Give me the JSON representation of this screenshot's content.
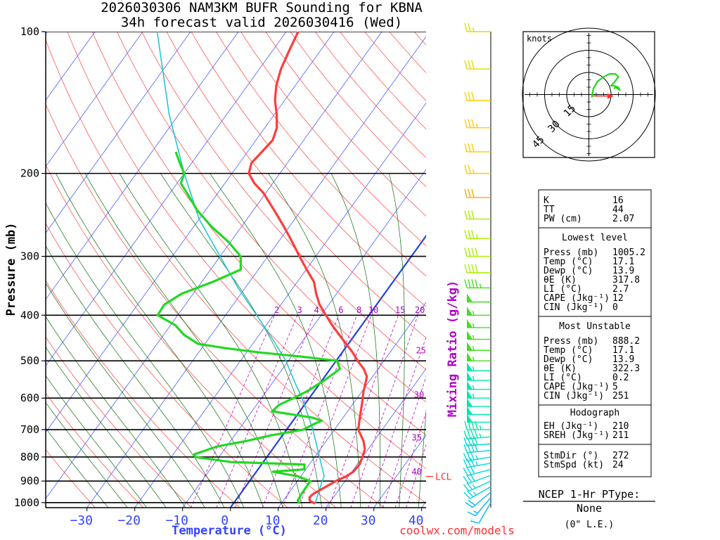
{
  "title": {
    "line1": "2026030306 NAM3KM BUFR Sounding for KBNA",
    "line2": "34h forecast valid 2026030416 (Wed)"
  },
  "colors": {
    "temperature": "#ff3c3c",
    "dewpoint": "#22d822",
    "parcel": "#22c8d8",
    "zero_isotherm": "#2244dd",
    "isotherm": "#4a5cff",
    "dry_adiabat": "#ff4040",
    "moist_adiabat": "#0a6a0a",
    "mixing_ratio": "#c000c0",
    "axis_label": "#3344ff",
    "mixing_label": "#b000c8",
    "site": "#ff3030"
  },
  "chart_data": {
    "type": "skew-t",
    "xlabel": "Temperature (°C)",
    "ylabel": "Pressure (mb)",
    "mixing_label": "Mixing Ratio (g/kg)",
    "xlim": [
      -40,
      40
    ],
    "ylim": [
      1025,
      100
    ],
    "x_ticks": [
      "−30",
      "−20",
      "−10",
      "0",
      "10",
      "20",
      "30",
      "40"
    ],
    "x_tick_values": [
      -30,
      -20,
      -10,
      0,
      10,
      20,
      30,
      40
    ],
    "pressure_levels": [
      100,
      200,
      300,
      400,
      500,
      600,
      700,
      800,
      900,
      1000
    ],
    "mixing_ratio_labels": [
      {
        "value": "2",
        "p": 390
      },
      {
        "value": "3",
        "p": 390
      },
      {
        "value": "4",
        "p": 390
      },
      {
        "value": "6",
        "p": 390
      },
      {
        "value": "8",
        "p": 390
      },
      {
        "value": "10",
        "p": 390
      },
      {
        "value": "15",
        "p": 390
      },
      {
        "value": "20",
        "p": 390
      },
      {
        "value": "25",
        "p": 475
      },
      {
        "value": "30",
        "p": 590
      },
      {
        "value": "35",
        "p": 728
      },
      {
        "value": "40",
        "p": 860
      }
    ],
    "lcl": {
      "label": "LCL",
      "p": 880
    },
    "temperature_profile": [
      [
        1005,
        17.1
      ],
      [
        990,
        15.5
      ],
      [
        975,
        15.0
      ],
      [
        960,
        15.2
      ],
      [
        930,
        16.6
      ],
      [
        900,
        18.0
      ],
      [
        880,
        19.5
      ],
      [
        860,
        20.3
      ],
      [
        830,
        20.5
      ],
      [
        800,
        20.0
      ],
      [
        770,
        19.3
      ],
      [
        740,
        17.8
      ],
      [
        700,
        15.0
      ],
      [
        660,
        13.5
      ],
      [
        620,
        12.0
      ],
      [
        580,
        10.3
      ],
      [
        560,
        9.6
      ],
      [
        540,
        8.8
      ],
      [
        520,
        7.0
      ],
      [
        500,
        4.5
      ],
      [
        480,
        2.2
      ],
      [
        460,
        -0.5
      ],
      [
        440,
        -3.3
      ],
      [
        420,
        -6.2
      ],
      [
        400,
        -9.0
      ],
      [
        380,
        -11.9
      ],
      [
        360,
        -14.3
      ],
      [
        340,
        -16.5
      ],
      [
        320,
        -19.9
      ],
      [
        300,
        -23.4
      ],
      [
        280,
        -27.0
      ],
      [
        260,
        -31.0
      ],
      [
        240,
        -35.5
      ],
      [
        220,
        -40.5
      ],
      [
        210,
        -43.8
      ],
      [
        200,
        -46.5
      ],
      [
        190,
        -47.5
      ],
      [
        180,
        -47.0
      ],
      [
        170,
        -46.5
      ],
      [
        160,
        -47.5
      ],
      [
        150,
        -49.5
      ],
      [
        140,
        -52.0
      ],
      [
        130,
        -54.0
      ],
      [
        120,
        -55.5
      ],
      [
        110,
        -56.5
      ],
      [
        100,
        -57.5
      ]
    ],
    "dewpoint_profile": [
      [
        1005,
        13.9
      ],
      [
        990,
        13.0
      ],
      [
        960,
        12.8
      ],
      [
        900,
        12.7
      ],
      [
        880,
        9.5
      ],
      [
        860,
        3.5
      ],
      [
        850,
        9.7
      ],
      [
        830,
        9.0
      ],
      [
        820,
        -6.8
      ],
      [
        800,
        -15.0
      ],
      [
        790,
        -15.6
      ],
      [
        760,
        -12.0
      ],
      [
        740,
        -6.7
      ],
      [
        720,
        -2.5
      ],
      [
        700,
        3.5
      ],
      [
        680,
        5.0
      ],
      [
        670,
        6.0
      ],
      [
        660,
        3.6
      ],
      [
        640,
        -5.8
      ],
      [
        620,
        -5.3
      ],
      [
        600,
        -3.3
      ],
      [
        580,
        -1.5
      ],
      [
        550,
        0.5
      ],
      [
        520,
        2.0
      ],
      [
        500,
        0.2
      ],
      [
        490,
        -7.7
      ],
      [
        480,
        -17.2
      ],
      [
        470,
        -25.0
      ],
      [
        460,
        -31.5
      ],
      [
        440,
        -35.8
      ],
      [
        420,
        -39.0
      ],
      [
        400,
        -44.2
      ],
      [
        380,
        -44.4
      ],
      [
        360,
        -42.4
      ],
      [
        340,
        -37.7
      ],
      [
        320,
        -33.7
      ],
      [
        300,
        -35.7
      ],
      [
        280,
        -40.3
      ],
      [
        260,
        -46.1
      ],
      [
        240,
        -51.6
      ],
      [
        220,
        -56.5
      ],
      [
        210,
        -59.2
      ],
      [
        200,
        -60.0
      ],
      [
        190,
        -62.5
      ],
      [
        180,
        -65.0
      ]
    ],
    "parcel_profile": [
      [
        1005,
        17.1
      ],
      [
        900,
        15.2
      ],
      [
        880,
        14.9
      ],
      [
        800,
        11.0
      ],
      [
        700,
        5.5
      ],
      [
        600,
        -1.5
      ],
      [
        560,
        -5.0
      ],
      [
        500,
        -10.5
      ],
      [
        450,
        -16.5
      ],
      [
        400,
        -23.5
      ],
      [
        350,
        -31.5
      ],
      [
        300,
        -40.0
      ],
      [
        250,
        -50.0
      ],
      [
        200,
        -60.0
      ],
      [
        150,
        -72.0
      ],
      [
        100,
        -87.0
      ]
    ],
    "wind_barbs": [
      {
        "p": 1000,
        "dir": 210,
        "spd": 10
      },
      {
        "p": 975,
        "dir": 220,
        "spd": 15
      },
      {
        "p": 950,
        "dir": 230,
        "spd": 20
      },
      {
        "p": 925,
        "dir": 240,
        "spd": 25
      },
      {
        "p": 900,
        "dir": 245,
        "spd": 25
      },
      {
        "p": 875,
        "dir": 250,
        "spd": 30
      },
      {
        "p": 850,
        "dir": 255,
        "spd": 30
      },
      {
        "p": 825,
        "dir": 260,
        "spd": 35
      },
      {
        "p": 800,
        "dir": 260,
        "spd": 35
      },
      {
        "p": 775,
        "dir": 265,
        "spd": 40
      },
      {
        "p": 750,
        "dir": 265,
        "spd": 40
      },
      {
        "p": 725,
        "dir": 265,
        "spd": 45
      },
      {
        "p": 700,
        "dir": 270,
        "spd": 45
      },
      {
        "p": 675,
        "dir": 270,
        "spd": 50
      },
      {
        "p": 650,
        "dir": 270,
        "spd": 50
      },
      {
        "p": 625,
        "dir": 270,
        "spd": 50
      },
      {
        "p": 600,
        "dir": 270,
        "spd": 55
      },
      {
        "p": 575,
        "dir": 270,
        "spd": 55
      },
      {
        "p": 550,
        "dir": 270,
        "spd": 55
      },
      {
        "p": 525,
        "dir": 270,
        "spd": 55
      },
      {
        "p": 500,
        "dir": 270,
        "spd": 55
      },
      {
        "p": 475,
        "dir": 270,
        "spd": 55
      },
      {
        "p": 450,
        "dir": 270,
        "spd": 55
      },
      {
        "p": 425,
        "dir": 270,
        "spd": 55
      },
      {
        "p": 400,
        "dir": 270,
        "spd": 55
      },
      {
        "p": 375,
        "dir": 270,
        "spd": 50
      },
      {
        "p": 350,
        "dir": 270,
        "spd": 45
      },
      {
        "p": 325,
        "dir": 270,
        "spd": 40
      },
      {
        "p": 300,
        "dir": 270,
        "spd": 40
      },
      {
        "p": 275,
        "dir": 270,
        "spd": 35
      },
      {
        "p": 250,
        "dir": 270,
        "spd": 30
      },
      {
        "p": 225,
        "dir": 270,
        "spd": 30
      },
      {
        "p": 200,
        "dir": 270,
        "spd": 25
      },
      {
        "p": 180,
        "dir": 270,
        "spd": 30
      },
      {
        "p": 160,
        "dir": 270,
        "spd": 35
      },
      {
        "p": 140,
        "dir": 270,
        "spd": 30
      },
      {
        "p": 120,
        "dir": 270,
        "spd": 30
      },
      {
        "p": 100,
        "dir": 270,
        "spd": 25
      }
    ],
    "hodograph": {
      "units_label": "knots",
      "rings": [
        "15",
        "30",
        "45"
      ],
      "trace": [
        [
          2,
          -2
        ],
        [
          3,
          4
        ],
        [
          6,
          9
        ],
        [
          10,
          12
        ],
        [
          14,
          14
        ],
        [
          18,
          14
        ],
        [
          20,
          12
        ],
        [
          17,
          8
        ],
        [
          15,
          6
        ],
        [
          17,
          6
        ],
        [
          20,
          5
        ],
        [
          21,
          3
        ],
        [
          18,
          5
        ],
        [
          17,
          4
        ]
      ],
      "storm_motion": [
        14,
        -1
      ]
    }
  },
  "indices": {
    "general": [
      {
        "label": "K",
        "value": "16"
      },
      {
        "label": "TT",
        "value": "44"
      },
      {
        "label": "PW (cm)",
        "value": "2.07"
      }
    ],
    "lowest_title": "Lowest level",
    "lowest": [
      {
        "label": "Press (mb)",
        "value": "1005.2"
      },
      {
        "label": "Temp (°C)",
        "value": "17.1"
      },
      {
        "label": "Dewp (°C)",
        "value": "13.9"
      },
      {
        "label": "θE (K)",
        "value": "317.8"
      },
      {
        "label": "LI (°C)",
        "value": "2.7"
      },
      {
        "label": "CAPE (Jkg⁻¹)",
        "value": "12"
      },
      {
        "label": "CIN (Jkg⁻¹)",
        "value": "0"
      }
    ],
    "unstable_title": "Most Unstable",
    "unstable": [
      {
        "label": "Press (mb)",
        "value": "888.2"
      },
      {
        "label": "Temp (°C)",
        "value": "17.1"
      },
      {
        "label": "Dewp (°C)",
        "value": "13.9"
      },
      {
        "label": "θE (K)",
        "value": "322.3"
      },
      {
        "label": "LI (°C)",
        "value": "0.2"
      },
      {
        "label": "CAPE (Jkg⁻¹)",
        "value": "5"
      },
      {
        "label": "CIN (Jkg⁻¹)",
        "value": "251"
      }
    ],
    "hodo_title": "Hodograph",
    "hodo": [
      {
        "label": "EH (Jkg⁻¹)",
        "value": "210"
      },
      {
        "label": "SREH (Jkg⁻¹)",
        "value": "211"
      }
    ],
    "storm": [
      {
        "label": "StmDir (°)",
        "value": "272"
      },
      {
        "label": "StmSpd (kt)",
        "value": "24"
      }
    ]
  },
  "ptype": {
    "title": "NCEP 1-Hr PType:",
    "value": "None",
    "accum": "(0\" L.E.)"
  },
  "credit": "coolwx.com/models"
}
